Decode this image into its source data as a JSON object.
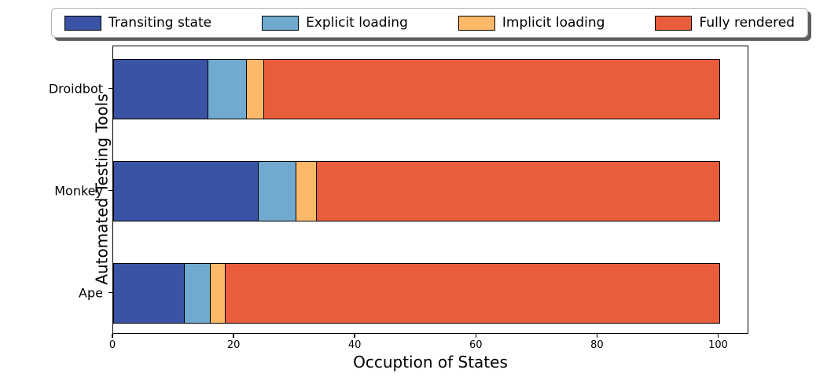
{
  "chart_data": {
    "type": "bar",
    "subtype": "horizontal-stacked",
    "title": "",
    "xlabel": "Occuption of States",
    "ylabel": "Automated Testing Tools",
    "categories": [
      "Droidbot",
      "Monkey",
      "Ape"
    ],
    "series": [
      {
        "name": "Transiting state",
        "color": "#3A53A4",
        "values": [
          15.6,
          23.9,
          11.7
        ]
      },
      {
        "name": "Explicit loading",
        "color": "#70AACF",
        "values": [
          6.3,
          6.2,
          4.2
        ]
      },
      {
        "name": "Implicit loading",
        "color": "#FDB96A",
        "values": [
          2.9,
          3.4,
          2.5
        ]
      },
      {
        "name": "Fully rendered",
        "color": "#E95C3C",
        "values": [
          75.2,
          66.5,
          81.6
        ]
      }
    ],
    "xlim": [
      0,
      105
    ],
    "xticks": [
      0,
      20,
      40,
      60,
      80,
      100
    ],
    "legend_position": "top",
    "grid": false,
    "bar_edge_color": "#000000",
    "axes_color": "#000000",
    "background_color": "#ffffff"
  }
}
